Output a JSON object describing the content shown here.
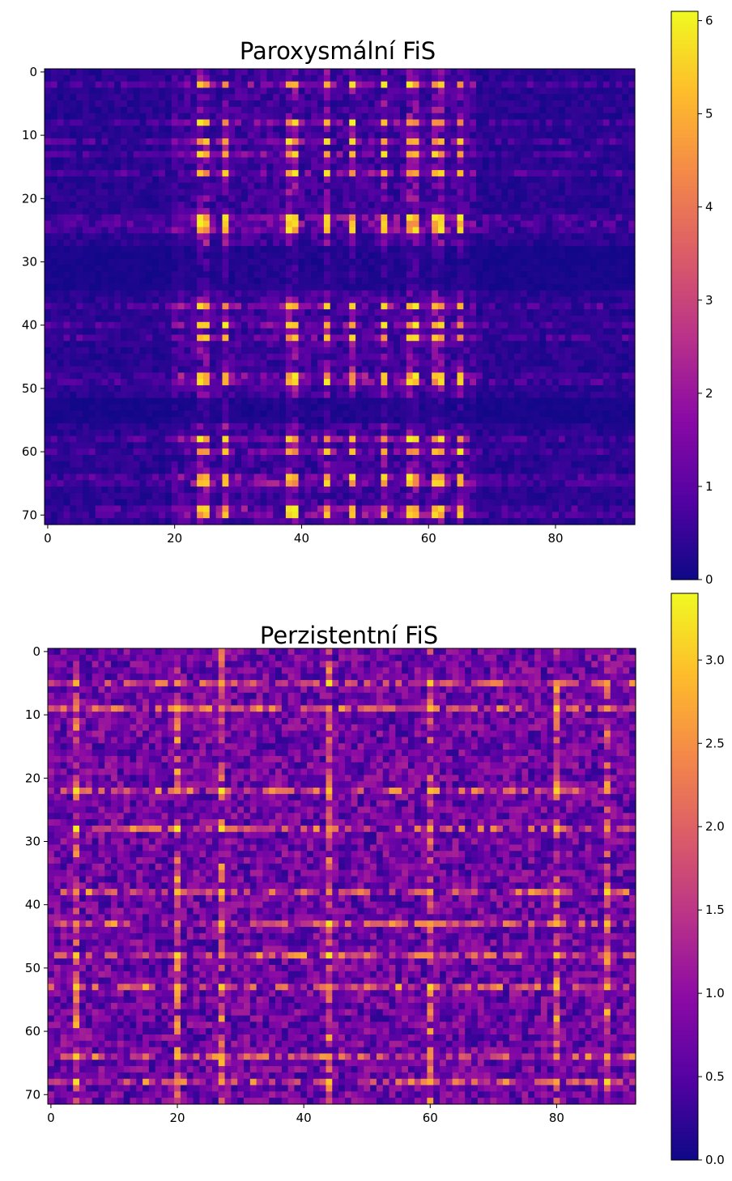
{
  "chart_data": [
    {
      "type": "heatmap",
      "title": "Paroxysmální FiS",
      "rows": 72,
      "cols": 93,
      "colormap": "plasma",
      "vmin": 0,
      "vmax": 6.1,
      "x_ticks": [
        0,
        20,
        40,
        60,
        80
      ],
      "y_ticks": [
        0,
        10,
        20,
        30,
        40,
        50,
        60,
        70
      ],
      "colorbar_ticks": [
        0,
        1,
        2,
        3,
        4,
        5,
        6
      ],
      "colorbar_tick_labels": [
        "0",
        "1",
        "2",
        "3",
        "4",
        "5",
        "6"
      ],
      "pattern": {
        "bright_columns": [
          24,
          25,
          28,
          38,
          39,
          44,
          48,
          53,
          57,
          58,
          61,
          62,
          65
        ],
        "bright_rows": [
          2,
          8,
          11,
          13,
          16,
          23,
          24,
          25,
          37,
          40,
          42,
          48,
          49,
          58,
          60,
          64,
          65,
          69,
          70
        ],
        "dark_col_bands": [
          [
            0,
            19
          ],
          [
            68,
            92
          ]
        ],
        "dark_row_bands": [
          [
            28,
            34
          ],
          [
            52,
            55
          ]
        ],
        "peak_value": 6.0,
        "background_value": 0.6
      }
    },
    {
      "type": "heatmap",
      "title": "Perzistentní FiS",
      "rows": 72,
      "cols": 93,
      "colormap": "plasma",
      "vmin": 0,
      "vmax": 3.4,
      "x_ticks": [
        0,
        20,
        40,
        60,
        80
      ],
      "y_ticks": [
        0,
        10,
        20,
        30,
        40,
        50,
        60,
        70
      ],
      "colorbar_ticks": [
        0,
        0.5,
        1,
        1.5,
        2,
        2.5,
        3
      ],
      "colorbar_tick_labels": [
        "0.0",
        "0.5",
        "1.0",
        "1.5",
        "2.0",
        "2.5",
        "3.0"
      ],
      "pattern": {
        "bright_columns": [
          4,
          20,
          27,
          44,
          60,
          80,
          88
        ],
        "bright_rows": [
          5,
          9,
          22,
          28,
          38,
          43,
          48,
          53,
          64,
          68
        ],
        "peak_value": 3.3,
        "background_value": 0.7
      }
    }
  ]
}
